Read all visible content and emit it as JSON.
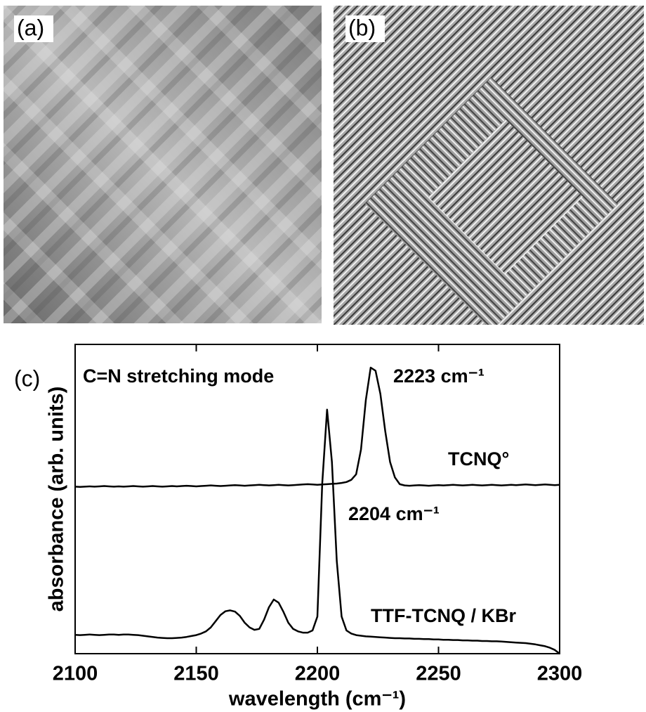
{
  "panels": [
    "(a)",
    "(b)",
    "(c)"
  ],
  "chart_data": {
    "type": "line",
    "xlabel": "wavelength (cm⁻¹)",
    "ylabel": "absorbance (arb. units)",
    "annotations": [
      "C=N stretching mode",
      "2223 cm⁻¹",
      "2204 cm⁻¹"
    ],
    "xlim": [
      2100,
      2300
    ],
    "xticks": [
      2100,
      2150,
      2200,
      2250,
      2300
    ],
    "ylim": [
      0,
      1
    ],
    "x": [
      2100,
      2102,
      2104,
      2106,
      2108,
      2110,
      2112,
      2114,
      2116,
      2118,
      2120,
      2122,
      2124,
      2126,
      2128,
      2130,
      2132,
      2134,
      2136,
      2138,
      2140,
      2142,
      2144,
      2146,
      2148,
      2150,
      2152,
      2154,
      2156,
      2158,
      2160,
      2162,
      2164,
      2166,
      2168,
      2170,
      2172,
      2174,
      2176,
      2178,
      2180,
      2182,
      2184,
      2186,
      2188,
      2190,
      2192,
      2194,
      2196,
      2198,
      2200,
      2202,
      2204,
      2206,
      2208,
      2210,
      2212,
      2214,
      2216,
      2218,
      2220,
      2222,
      2224,
      2226,
      2228,
      2230,
      2232,
      2234,
      2236,
      2238,
      2240,
      2242,
      2244,
      2246,
      2248,
      2250,
      2252,
      2254,
      2256,
      2258,
      2260,
      2262,
      2264,
      2266,
      2268,
      2270,
      2272,
      2274,
      2276,
      2278,
      2280,
      2282,
      2284,
      2286,
      2288,
      2290,
      2292,
      2294,
      2296,
      2298,
      2300
    ],
    "series": [
      {
        "name": "TCNQ°",
        "color": "#000000",
        "values": [
          0.54,
          0.539,
          0.54,
          0.541,
          0.54,
          0.541,
          0.542,
          0.541,
          0.54,
          0.541,
          0.54,
          0.541,
          0.542,
          0.541,
          0.54,
          0.541,
          0.542,
          0.541,
          0.54,
          0.541,
          0.542,
          0.541,
          0.542,
          0.543,
          0.542,
          0.541,
          0.542,
          0.543,
          0.544,
          0.543,
          0.542,
          0.543,
          0.544,
          0.545,
          0.544,
          0.543,
          0.544,
          0.545,
          0.546,
          0.545,
          0.544,
          0.545,
          0.546,
          0.545,
          0.544,
          0.545,
          0.546,
          0.547,
          0.548,
          0.547,
          0.546,
          0.547,
          0.548,
          0.549,
          0.55,
          0.552,
          0.555,
          0.562,
          0.58,
          0.66,
          0.82,
          0.925,
          0.915,
          0.84,
          0.72,
          0.62,
          0.57,
          0.548,
          0.544,
          0.543,
          0.544,
          0.545,
          0.544,
          0.543,
          0.544,
          0.545,
          0.544,
          0.545,
          0.546,
          0.545,
          0.544,
          0.545,
          0.546,
          0.545,
          0.544,
          0.545,
          0.546,
          0.545,
          0.544,
          0.545,
          0.546,
          0.545,
          0.546,
          0.547,
          0.546,
          0.545,
          0.546,
          0.547,
          0.546,
          0.545,
          0.546
        ]
      },
      {
        "name": "TTF-TCNQ / KBr",
        "color": "#000000",
        "values": [
          0.061,
          0.06,
          0.061,
          0.062,
          0.061,
          0.06,
          0.061,
          0.062,
          0.062,
          0.061,
          0.062,
          0.062,
          0.061,
          0.06,
          0.058,
          0.056,
          0.054,
          0.052,
          0.051,
          0.05,
          0.05,
          0.051,
          0.052,
          0.054,
          0.057,
          0.06,
          0.065,
          0.072,
          0.085,
          0.105,
          0.125,
          0.137,
          0.14,
          0.136,
          0.122,
          0.1,
          0.085,
          0.077,
          0.08,
          0.11,
          0.15,
          0.175,
          0.165,
          0.135,
          0.1,
          0.08,
          0.072,
          0.068,
          0.068,
          0.075,
          0.12,
          0.55,
          0.789,
          0.62,
          0.3,
          0.12,
          0.075,
          0.065,
          0.06,
          0.058,
          0.056,
          0.055,
          0.054,
          0.053,
          0.052,
          0.051,
          0.05,
          0.05,
          0.049,
          0.049,
          0.048,
          0.048,
          0.047,
          0.047,
          0.046,
          0.046,
          0.045,
          0.045,
          0.044,
          0.044,
          0.043,
          0.043,
          0.042,
          0.042,
          0.041,
          0.041,
          0.04,
          0.04,
          0.039,
          0.038,
          0.037,
          0.036,
          0.035,
          0.034,
          0.032,
          0.03,
          0.027,
          0.024,
          0.019,
          0.012,
          0.0
        ]
      }
    ]
  }
}
